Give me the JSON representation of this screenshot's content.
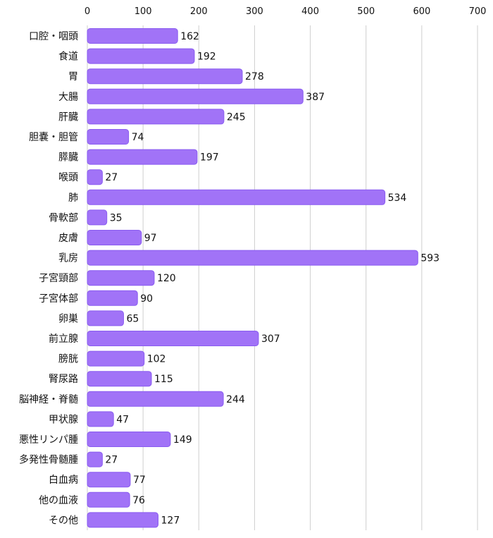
{
  "chart_data": {
    "type": "bar",
    "orientation": "horizontal",
    "categories": [
      "口腔・咽頭",
      "食道",
      "胃",
      "大腸",
      "肝臓",
      "胆嚢・胆管",
      "膵臓",
      "喉頭",
      "肺",
      "骨軟部",
      "皮膚",
      "乳房",
      "子宮頸部",
      "子宮体部",
      "卵巣",
      "前立腺",
      "膀胱",
      "腎尿路",
      "脳神経・脊髄",
      "甲状腺",
      "悪性リンパ腫",
      "多発性骨髄腫",
      "白血病",
      "他の血液",
      "その他"
    ],
    "values": [
      162,
      192,
      278,
      387,
      245,
      74,
      197,
      27,
      534,
      35,
      97,
      593,
      120,
      90,
      65,
      307,
      102,
      115,
      244,
      47,
      149,
      27,
      77,
      76,
      127
    ],
    "xlim": [
      0,
      700
    ],
    "ticks": [
      0,
      100,
      200,
      300,
      400,
      500,
      600,
      700
    ],
    "axis_position": "top",
    "grid": true,
    "colors": {
      "bar_fill": "#a173f7",
      "bar_stroke": "#8a5cf0"
    }
  }
}
